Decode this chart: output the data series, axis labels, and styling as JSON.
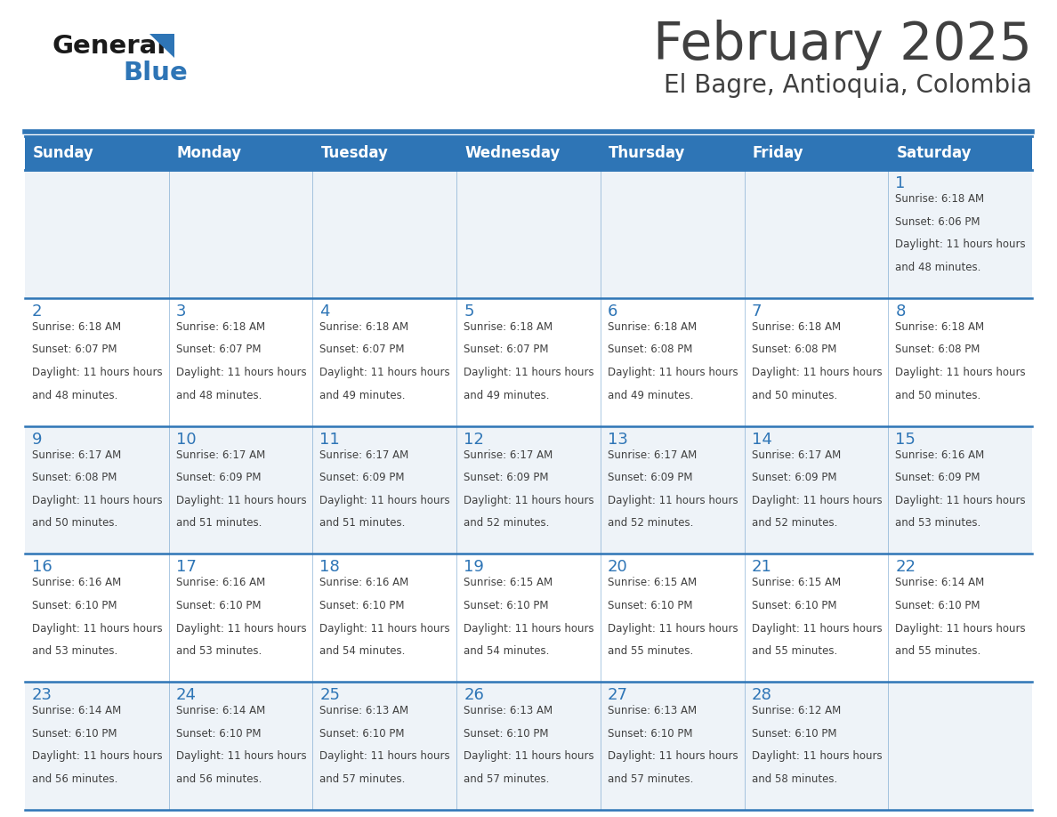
{
  "title": "February 2025",
  "subtitle": "El Bagre, Antioquia, Colombia",
  "days_of_week": [
    "Sunday",
    "Monday",
    "Tuesday",
    "Wednesday",
    "Thursday",
    "Friday",
    "Saturday"
  ],
  "header_bg": "#2E75B6",
  "header_text": "#FFFFFF",
  "cell_bg_light": "#FFFFFF",
  "cell_bg_alt": "#EEF3F8",
  "text_color": "#404040",
  "day_num_color": "#2E75B6",
  "separator_color": "#2E75B6",
  "logo_general_color": "#1A1A1A",
  "logo_blue_color": "#2E75B6",
  "calendar_data": [
    [
      null,
      null,
      null,
      null,
      null,
      null,
      1
    ],
    [
      2,
      3,
      4,
      5,
      6,
      7,
      8
    ],
    [
      9,
      10,
      11,
      12,
      13,
      14,
      15
    ],
    [
      16,
      17,
      18,
      19,
      20,
      21,
      22
    ],
    [
      23,
      24,
      25,
      26,
      27,
      28,
      null
    ]
  ],
  "sun_data": {
    "1": {
      "sunrise": "6:18 AM",
      "sunset": "6:06 PM",
      "daylight": "11 hours and 48 minutes"
    },
    "2": {
      "sunrise": "6:18 AM",
      "sunset": "6:07 PM",
      "daylight": "11 hours and 48 minutes"
    },
    "3": {
      "sunrise": "6:18 AM",
      "sunset": "6:07 PM",
      "daylight": "11 hours and 48 minutes"
    },
    "4": {
      "sunrise": "6:18 AM",
      "sunset": "6:07 PM",
      "daylight": "11 hours and 49 minutes"
    },
    "5": {
      "sunrise": "6:18 AM",
      "sunset": "6:07 PM",
      "daylight": "11 hours and 49 minutes"
    },
    "6": {
      "sunrise": "6:18 AM",
      "sunset": "6:08 PM",
      "daylight": "11 hours and 49 minutes"
    },
    "7": {
      "sunrise": "6:18 AM",
      "sunset": "6:08 PM",
      "daylight": "11 hours and 50 minutes"
    },
    "8": {
      "sunrise": "6:18 AM",
      "sunset": "6:08 PM",
      "daylight": "11 hours and 50 minutes"
    },
    "9": {
      "sunrise": "6:17 AM",
      "sunset": "6:08 PM",
      "daylight": "11 hours and 50 minutes"
    },
    "10": {
      "sunrise": "6:17 AM",
      "sunset": "6:09 PM",
      "daylight": "11 hours and 51 minutes"
    },
    "11": {
      "sunrise": "6:17 AM",
      "sunset": "6:09 PM",
      "daylight": "11 hours and 51 minutes"
    },
    "12": {
      "sunrise": "6:17 AM",
      "sunset": "6:09 PM",
      "daylight": "11 hours and 52 minutes"
    },
    "13": {
      "sunrise": "6:17 AM",
      "sunset": "6:09 PM",
      "daylight": "11 hours and 52 minutes"
    },
    "14": {
      "sunrise": "6:17 AM",
      "sunset": "6:09 PM",
      "daylight": "11 hours and 52 minutes"
    },
    "15": {
      "sunrise": "6:16 AM",
      "sunset": "6:09 PM",
      "daylight": "11 hours and 53 minutes"
    },
    "16": {
      "sunrise": "6:16 AM",
      "sunset": "6:10 PM",
      "daylight": "11 hours and 53 minutes"
    },
    "17": {
      "sunrise": "6:16 AM",
      "sunset": "6:10 PM",
      "daylight": "11 hours and 53 minutes"
    },
    "18": {
      "sunrise": "6:16 AM",
      "sunset": "6:10 PM",
      "daylight": "11 hours and 54 minutes"
    },
    "19": {
      "sunrise": "6:15 AM",
      "sunset": "6:10 PM",
      "daylight": "11 hours and 54 minutes"
    },
    "20": {
      "sunrise": "6:15 AM",
      "sunset": "6:10 PM",
      "daylight": "11 hours and 55 minutes"
    },
    "21": {
      "sunrise": "6:15 AM",
      "sunset": "6:10 PM",
      "daylight": "11 hours and 55 minutes"
    },
    "22": {
      "sunrise": "6:14 AM",
      "sunset": "6:10 PM",
      "daylight": "11 hours and 55 minutes"
    },
    "23": {
      "sunrise": "6:14 AM",
      "sunset": "6:10 PM",
      "daylight": "11 hours and 56 minutes"
    },
    "24": {
      "sunrise": "6:14 AM",
      "sunset": "6:10 PM",
      "daylight": "11 hours and 56 minutes"
    },
    "25": {
      "sunrise": "6:13 AM",
      "sunset": "6:10 PM",
      "daylight": "11 hours and 57 minutes"
    },
    "26": {
      "sunrise": "6:13 AM",
      "sunset": "6:10 PM",
      "daylight": "11 hours and 57 minutes"
    },
    "27": {
      "sunrise": "6:13 AM",
      "sunset": "6:10 PM",
      "daylight": "11 hours and 57 minutes"
    },
    "28": {
      "sunrise": "6:12 AM",
      "sunset": "6:10 PM",
      "daylight": "11 hours and 58 minutes"
    }
  }
}
